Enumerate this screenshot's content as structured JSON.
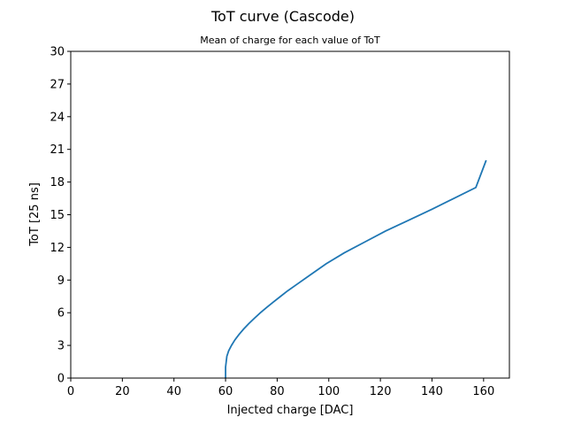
{
  "chart_data": {
    "type": "line",
    "title": "ToT curve (Cascode)",
    "subtitle": "Mean of charge for each value of ToT",
    "xlabel": "Injected charge [DAC]",
    "ylabel": "ToT [25 ns]",
    "xlim": [
      0,
      170
    ],
    "ylim": [
      0,
      30
    ],
    "xticks": [
      0,
      20,
      40,
      60,
      80,
      100,
      120,
      140,
      160
    ],
    "yticks": [
      0,
      3,
      6,
      9,
      12,
      15,
      18,
      21,
      24,
      27,
      30
    ],
    "grid": false,
    "series": [
      {
        "color": "#1f77b4",
        "x": [
          60,
          60,
          60.5,
          61.2,
          62.3,
          63.6,
          65.2,
          67,
          69,
          71.2,
          73.5,
          76,
          78.6,
          81.3,
          84,
          87,
          93,
          99,
          106,
          114,
          122,
          131,
          140,
          148.5,
          157,
          161
        ],
        "y": [
          0,
          1,
          2,
          2.5,
          3,
          3.5,
          4,
          4.5,
          5,
          5.5,
          6,
          6.5,
          7,
          7.5,
          8,
          8.5,
          9.5,
          10.5,
          11.5,
          12.5,
          13.5,
          14.5,
          15.5,
          16.5,
          17.5,
          20
        ]
      }
    ]
  }
}
